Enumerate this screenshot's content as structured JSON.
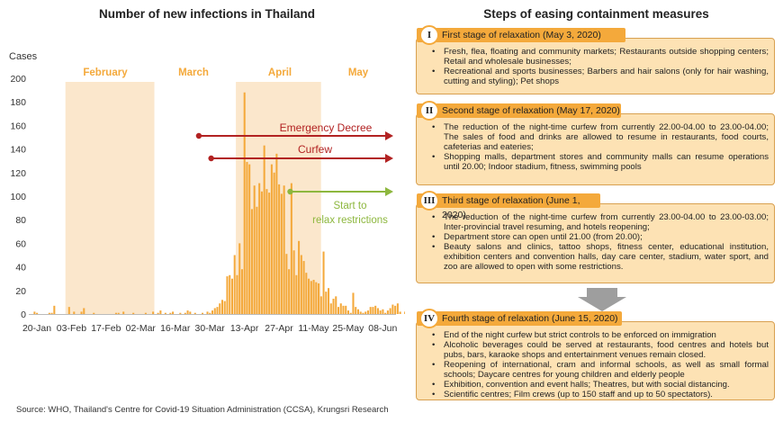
{
  "chart_data": {
    "type": "bar",
    "title": "Number of new infections in Thailand",
    "ylabel": "Cases",
    "ylim": [
      0,
      200
    ],
    "yticks": [
      0,
      20,
      40,
      60,
      80,
      100,
      120,
      140,
      160,
      180,
      200
    ],
    "start_date": "20-Jan",
    "xtick_labels": [
      "20-Jan",
      "03-Feb",
      "17-Feb",
      "02-Mar",
      "16-Mar",
      "30-Mar",
      "13-Apr",
      "27-Apr",
      "11-May",
      "25-May",
      "08-Jun"
    ],
    "month_labels": [
      "February",
      "March",
      "April",
      "May"
    ],
    "values": [
      2,
      1,
      0,
      0,
      0,
      0,
      1,
      1,
      7,
      0,
      0,
      0,
      0,
      0,
      6,
      0,
      2,
      0,
      0,
      2,
      5,
      0,
      0,
      0,
      1,
      0,
      0,
      0,
      0,
      0,
      0,
      0,
      0,
      1,
      1,
      0,
      2,
      0,
      0,
      0,
      1,
      0,
      0,
      0,
      0,
      1,
      0,
      0,
      2,
      0,
      1,
      3,
      0,
      1,
      0,
      1,
      2,
      0,
      0,
      1,
      0,
      1,
      3,
      2,
      0,
      1,
      0,
      0,
      1,
      0,
      2,
      1,
      3,
      5,
      6,
      9,
      12,
      11,
      32,
      33,
      30,
      50,
      33,
      60,
      38,
      188,
      129,
      127,
      89,
      109,
      91,
      111,
      104,
      143,
      106,
      103,
      127,
      120,
      136,
      110,
      102,
      109,
      51,
      38,
      111,
      54,
      33,
      62,
      50,
      45,
      35,
      30,
      28,
      29,
      27,
      26,
      15,
      53,
      19,
      22,
      9,
      13,
      15,
      6,
      9,
      7,
      7,
      3,
      1,
      18,
      6,
      4,
      2,
      1,
      2,
      3,
      6,
      6,
      7,
      5,
      3,
      4,
      1,
      3,
      5,
      8,
      7,
      9,
      2,
      0,
      2,
      12,
      12,
      0,
      2,
      1,
      0,
      2,
      4,
      4,
      7,
      11,
      2,
      1,
      3,
      2,
      5,
      18,
      6,
      1,
      2,
      9,
      2,
      2,
      7
    ],
    "annotations": {
      "emergency_decree": "Emergency Decree",
      "curfew": "Curfew",
      "relax": "Start to relax restrictions"
    },
    "colors": {
      "bar": "#f4a93b",
      "shade": "#fbe7cc",
      "red": "#b22222",
      "green": "#8db73e",
      "axis": "#bbbbbb"
    }
  },
  "steps": {
    "title": "Steps of easing containment measures",
    "stages": [
      {
        "num": "I",
        "label": "First stage of relaxation (May 3, 2020)",
        "items": [
          "Fresh, flea, floating and community markets; Restaurants outside shopping centers; Retail and wholesale businesses;",
          "Recreational and sports businesses; Barbers and hair salons (only for hair washing, cutting and styling); Pet shops"
        ]
      },
      {
        "num": "II",
        "label": "Second stage of relaxation (May 17, 2020)",
        "items": [
          "The reduction of the night-time curfew from currently 22.00-04.00 to 23.00-04.00; The sales of food and drinks are allowed to resume in restaurants, food courts, cafeterias and eateries;",
          "Shopping malls, department stores and community malls can resume operations until 20.00; Indoor stadium, fitness, swimming pools"
        ]
      },
      {
        "num": "III",
        "label": "Third stage of relaxation (June 1, 2020)",
        "items": [
          "The reduction of the night-time curfew from currently 23.00-04.00 to 23.00-03.00; Inter-provincial travel resuming, and hotels reopening;",
          "Department store can open until 21.00 (from 20.00);",
          "Beauty salons and clinics, tattoo shops, fitness center, educational institution, exhibition centers and convention halls, day care center, stadium, water sport, and zoo are allowed to open with some restrictions."
        ]
      },
      {
        "num": "IV",
        "label": "Fourth stage of relaxation (June 15, 2020)",
        "items": [
          "End of the night curfew but strict controls to be enforced on immigration",
          "Alcoholic beverages could be served at restaurants, food centres and hotels but pubs, bars, karaoke shops and entertainment venues remain closed.",
          "Reopening of international, cram and informal schools, as well as small formal schools; Daycare centres for young children and elderly people",
          "Exhibition, convention and event halls; Theatres, but with social distancing.",
          "Scientific centres; Film crews (up to 150 staff and up to 50 spectators)."
        ]
      }
    ]
  },
  "source": "Source: WHO, Thailand's Centre for Covid-19 Situation Administration (CCSA), Krungsri Research"
}
